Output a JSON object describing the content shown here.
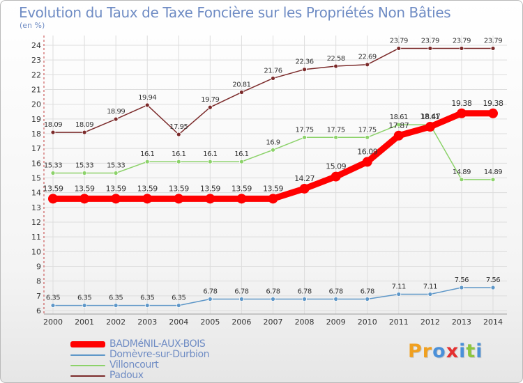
{
  "title": "Evolution du Taux de Taxe Foncière sur les Propriétés Non Bâties",
  "unit_label": "(en %)",
  "logo": {
    "text": "Proxiti",
    "colors": [
      "#f0a020",
      "#f0a020",
      "#4a90d9",
      "#e53030",
      "#4a90d9",
      "#8cc63f",
      "#4a90d9"
    ]
  },
  "chart_data": {
    "type": "line",
    "title": "Evolution du Taux de Taxe Foncière sur les Propriétés Non Bâties",
    "ylabel": "(en %)",
    "xlabel": "",
    "x": [
      "2000",
      "2001",
      "2002",
      "2003",
      "2004",
      "2005",
      "2006",
      "2007",
      "2008",
      "2009",
      "2010",
      "2011",
      "2012",
      "2013",
      "2014"
    ],
    "ylim": [
      6,
      24
    ],
    "yticks": [
      "6",
      "7",
      "8",
      "9",
      "10",
      "11",
      "12",
      "13",
      "14",
      "15",
      "16",
      "17",
      "18",
      "19",
      "20",
      "21",
      "22",
      "23",
      "24"
    ],
    "grid": true,
    "legend_position": "bottom-left",
    "series": [
      {
        "name": "BADMéNIL-AUX-BOIS",
        "color": "#ff0000",
        "values": [
          13.59,
          13.59,
          13.59,
          13.59,
          13.59,
          13.59,
          13.59,
          13.59,
          14.27,
          15.09,
          16.09,
          17.87,
          18.47,
          19.38,
          19.38
        ],
        "labels": [
          "13.59",
          "13.59",
          "13.59",
          "13.59",
          "13.59",
          "13.59",
          "13.59",
          "13.59",
          "14.27",
          "15.09",
          "16.09",
          "17.87",
          "18.47",
          "19.38",
          "19.38"
        ]
      },
      {
        "name": "Domèvre-sur-Durbion",
        "color": "#5e97c8",
        "values": [
          6.35,
          6.35,
          6.35,
          6.35,
          6.35,
          6.78,
          6.78,
          6.78,
          6.78,
          6.78,
          6.78,
          7.11,
          7.11,
          7.56,
          7.56
        ],
        "labels": [
          "6.35",
          "6.35",
          "6.35",
          "6.35",
          "6.35",
          "6.78",
          "6.78",
          "6.78",
          "6.78",
          "6.78",
          "6.78",
          "7.11",
          "7.11",
          "7.56",
          "7.56"
        ]
      },
      {
        "name": "Villoncourt",
        "color": "#8cd26a",
        "values": [
          15.33,
          15.33,
          15.33,
          16.1,
          16.1,
          16.1,
          16.1,
          16.9,
          17.75,
          17.75,
          17.75,
          18.61,
          18.61,
          14.89,
          14.89
        ],
        "labels": [
          "15.33",
          "15.33",
          "15.33",
          "16.1",
          "16.1",
          "16.1",
          "16.1",
          "16.9",
          "17.75",
          "17.75",
          "17.75",
          "18.61",
          "18.61",
          "14.89",
          "14.89"
        ]
      },
      {
        "name": "Padoux",
        "color": "#7b2a2a",
        "values": [
          18.09,
          18.09,
          18.99,
          19.94,
          17.95,
          19.79,
          20.81,
          21.76,
          22.36,
          22.58,
          22.69,
          23.79,
          23.79,
          23.79,
          23.79
        ],
        "labels": [
          "18.09",
          "18.09",
          "18.99",
          "19.94",
          "17.95",
          "19.79",
          "20.81",
          "21.76",
          "22.36",
          "22.58",
          "22.69",
          "23.79",
          "23.79",
          "23.79",
          "23.79"
        ]
      }
    ]
  }
}
